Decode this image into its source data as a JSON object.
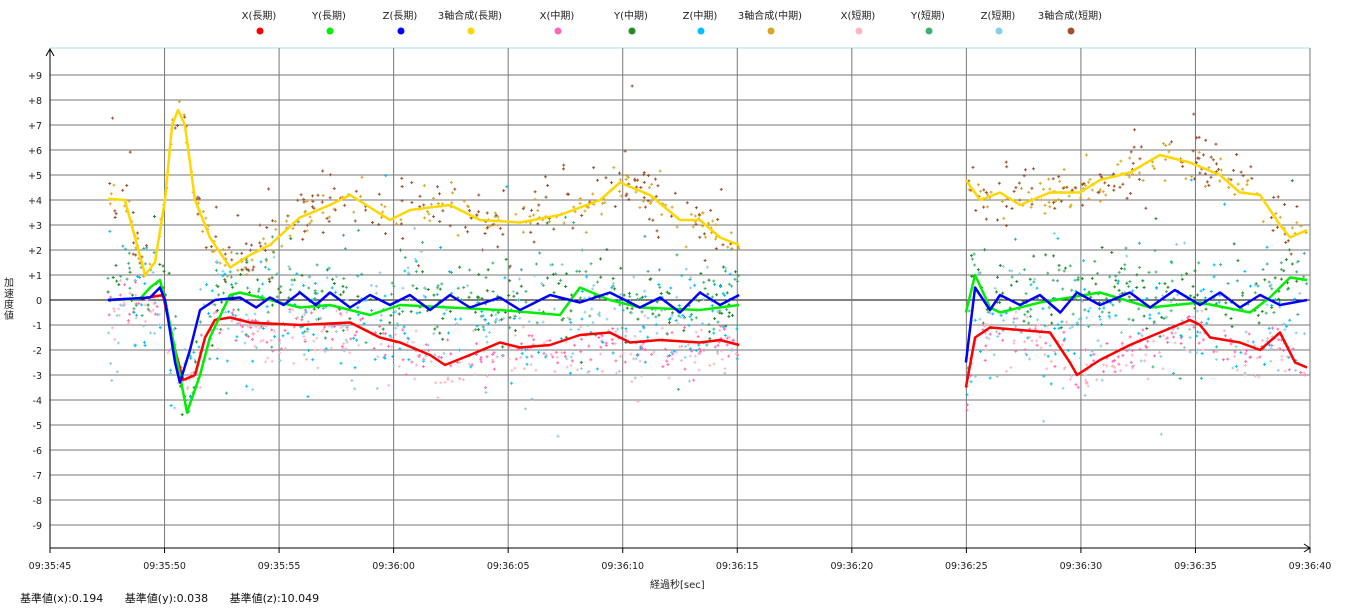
{
  "chart_data": {
    "type": "scatter",
    "title": "",
    "xlabel": "経過秒[sec]",
    "ylabel": "加速度値",
    "x_ticks": [
      "09:35:45",
      "09:35:50",
      "09:35:55",
      "09:36:00",
      "09:36:05",
      "09:36:10",
      "09:36:15",
      "09:36:20",
      "09:36:25",
      "09:36:30",
      "09:36:35",
      "09:36:40"
    ],
    "x_range_sec": [
      0,
      55
    ],
    "y_ticks": [
      "+9",
      "+8",
      "+7",
      "+6",
      "+5",
      "+4",
      "+3",
      "+2",
      "+1",
      "0",
      "-1",
      "-2",
      "-3",
      "-4",
      "-5",
      "-6",
      "-7",
      "-8",
      "-9"
    ],
    "y_tick_values": [
      9,
      8,
      7,
      6,
      5,
      4,
      3,
      2,
      1,
      0,
      -1,
      -2,
      -3,
      -4,
      -5,
      -6,
      -7,
      -8,
      -9
    ],
    "ylim": [
      -10,
      10
    ],
    "grid": true,
    "legend_position": "top",
    "series": [
      {
        "name": "X(長期)",
        "color": "#ff0000",
        "kind": "line",
        "segments": [
          [
            [
              2.53,
              0
            ],
            [
              3.93,
              0.05
            ],
            [
              4.93,
              0.2
            ],
            [
              5.46,
              -2
            ],
            [
              5.81,
              -3.2
            ],
            [
              6.33,
              -3
            ],
            [
              6.77,
              -1.5
            ],
            [
              7.2,
              -0.8
            ],
            [
              7.86,
              -0.7
            ],
            [
              8.73,
              -0.9
            ],
            [
              10.91,
              -1
            ],
            [
              13.1,
              -0.9
            ],
            [
              14.4,
              -1.5
            ],
            [
              15.28,
              -1.7
            ],
            [
              16.59,
              -2.2
            ],
            [
              17.24,
              -2.6
            ],
            [
              18.33,
              -2.2
            ],
            [
              19.64,
              -1.7
            ],
            [
              20.52,
              -1.9
            ],
            [
              21.83,
              -1.8
            ],
            [
              23.13,
              -1.4
            ],
            [
              24.44,
              -1.3
            ],
            [
              25.32,
              -1.7
            ],
            [
              26.63,
              -1.6
            ],
            [
              28.37,
              -1.7
            ],
            [
              29.25,
              -1.6
            ],
            [
              30.08,
              -1.8
            ]
          ],
          [
            [
              39.98,
              -3.5
            ],
            [
              40.38,
              -1.5
            ],
            [
              41.03,
              -1.1
            ],
            [
              42.34,
              -1.2
            ],
            [
              43.65,
              -1.3
            ],
            [
              44.52,
              -2.5
            ],
            [
              44.83,
              -3
            ],
            [
              45.83,
              -2.4
            ],
            [
              47.14,
              -1.8
            ],
            [
              48.45,
              -1.3
            ],
            [
              49.76,
              -0.8
            ],
            [
              50.2,
              -1
            ],
            [
              50.64,
              -1.5
            ],
            [
              51.94,
              -1.7
            ],
            [
              52.82,
              -2
            ],
            [
              53.69,
              -1.3
            ],
            [
              54.35,
              -2.5
            ],
            [
              54.87,
              -2.7
            ]
          ]
        ]
      },
      {
        "name": "Y(長期)",
        "color": "#00ee00",
        "kind": "line",
        "segments": [
          [
            [
              2.53,
              0
            ],
            [
              3.93,
              0.05
            ],
            [
              4.37,
              0.5
            ],
            [
              4.8,
              0.8
            ],
            [
              5.02,
              0
            ],
            [
              5.46,
              -2
            ],
            [
              5.98,
              -4.5
            ],
            [
              6.55,
              -3
            ],
            [
              6.98,
              -1.5
            ],
            [
              7.86,
              0.2
            ],
            [
              8.29,
              0.3
            ],
            [
              10.91,
              -0.3
            ],
            [
              12.22,
              -0.2
            ],
            [
              13.97,
              -0.6
            ],
            [
              15.28,
              -0.2
            ],
            [
              17.46,
              -0.3
            ],
            [
              19.64,
              -0.4
            ],
            [
              22.26,
              -0.6
            ],
            [
              23.13,
              0.5
            ],
            [
              24.44,
              0
            ],
            [
              25.75,
              -0.3
            ],
            [
              28.37,
              -0.4
            ],
            [
              30.08,
              -0.2
            ]
          ],
          [
            [
              39.98,
              -0.5
            ],
            [
              40.38,
              1
            ],
            [
              41.03,
              -0.3
            ],
            [
              41.47,
              -0.5
            ],
            [
              43.21,
              -0.1
            ],
            [
              45.83,
              0.3
            ],
            [
              48.02,
              -0.3
            ],
            [
              50.2,
              -0.1
            ],
            [
              52.38,
              -0.5
            ],
            [
              53.25,
              0.1
            ],
            [
              54.13,
              0.9
            ],
            [
              54.87,
              0.8
            ]
          ]
        ]
      },
      {
        "name": "Z(長期)",
        "color": "#0000ff",
        "kind": "line",
        "segments": [
          [
            [
              2.53,
              0
            ],
            [
              4.37,
              0.1
            ],
            [
              4.8,
              0.5
            ],
            [
              5.02,
              0
            ],
            [
              5.46,
              -2.5
            ],
            [
              5.67,
              -3.3
            ],
            [
              6.11,
              -2
            ],
            [
              6.55,
              -0.4
            ],
            [
              7.2,
              0
            ],
            [
              8.29,
              0.1
            ],
            [
              9.0,
              -0.3
            ],
            [
              9.6,
              0.1
            ],
            [
              10.2,
              -0.2
            ],
            [
              10.91,
              0.3
            ],
            [
              11.6,
              -0.2
            ],
            [
              12.22,
              0.3
            ],
            [
              13.1,
              -0.3
            ],
            [
              13.97,
              0.2
            ],
            [
              14.84,
              -0.2
            ],
            [
              15.71,
              0.2
            ],
            [
              16.59,
              -0.4
            ],
            [
              17.46,
              0.2
            ],
            [
              18.33,
              -0.3
            ],
            [
              19.64,
              0.1
            ],
            [
              20.52,
              -0.4
            ],
            [
              21.83,
              0.2
            ],
            [
              23.13,
              -0.1
            ],
            [
              24.44,
              0.3
            ],
            [
              25.75,
              -0.3
            ],
            [
              26.63,
              0.1
            ],
            [
              27.5,
              -0.5
            ],
            [
              28.37,
              0.3
            ],
            [
              29.25,
              -0.2
            ],
            [
              30.08,
              0.2
            ]
          ],
          [
            [
              39.98,
              -2.5
            ],
            [
              40.38,
              0.5
            ],
            [
              41.03,
              -0.4
            ],
            [
              41.47,
              0.2
            ],
            [
              42.34,
              -0.2
            ],
            [
              43.21,
              0.2
            ],
            [
              44.1,
              -0.5
            ],
            [
              44.83,
              0.3
            ],
            [
              45.83,
              -0.2
            ],
            [
              47.14,
              0.3
            ],
            [
              48.02,
              -0.3
            ],
            [
              49.1,
              0.4
            ],
            [
              50.2,
              -0.2
            ],
            [
              51.07,
              0.3
            ],
            [
              51.94,
              -0.3
            ],
            [
              52.82,
              0.2
            ],
            [
              53.69,
              -0.2
            ],
            [
              54.87,
              0
            ]
          ]
        ]
      },
      {
        "name": "3軸合成(長期)",
        "color": "#ffd700",
        "kind": "line",
        "segments": [
          [
            [
              2.53,
              4.05
            ],
            [
              3.27,
              4
            ],
            [
              3.71,
              2.5
            ],
            [
              4.15,
              1
            ],
            [
              4.58,
              1.5
            ],
            [
              5.02,
              4
            ],
            [
              5.33,
              7
            ],
            [
              5.59,
              7.6
            ],
            [
              5.89,
              7
            ],
            [
              6.33,
              4
            ],
            [
              6.98,
              2.5
            ],
            [
              7.86,
              1.3
            ],
            [
              8.73,
              1.8
            ],
            [
              9.6,
              2.2
            ],
            [
              10.91,
              3.3
            ],
            [
              12.22,
              3.8
            ],
            [
              13.1,
              4.2
            ],
            [
              13.97,
              3.7
            ],
            [
              14.84,
              3.2
            ],
            [
              15.71,
              3.6
            ],
            [
              17.46,
              3.8
            ],
            [
              18.77,
              3.2
            ],
            [
              20.52,
              3.1
            ],
            [
              22.26,
              3.4
            ],
            [
              24.01,
              4
            ],
            [
              24.88,
              4.7
            ],
            [
              26.19,
              4.2
            ],
            [
              27.5,
              3.2
            ],
            [
              28.37,
              3.2
            ],
            [
              29.25,
              2.5
            ],
            [
              30.08,
              2.2
            ]
          ],
          [
            [
              39.98,
              4.8
            ],
            [
              40.6,
              4
            ],
            [
              41.47,
              4.3
            ],
            [
              42.34,
              3.8
            ],
            [
              43.65,
              4.3
            ],
            [
              44.96,
              4.3
            ],
            [
              45.83,
              4.8
            ],
            [
              47.14,
              5.1
            ],
            [
              48.45,
              5.8
            ],
            [
              49.76,
              5.5
            ],
            [
              51.07,
              5
            ],
            [
              51.94,
              4.3
            ],
            [
              52.82,
              4.2
            ],
            [
              53.69,
              3
            ],
            [
              54.13,
              2.5
            ],
            [
              54.87,
              2.8
            ]
          ]
        ]
      },
      {
        "name": "X(中期)",
        "color": "#ff69b4",
        "kind": "scatter",
        "base": 0,
        "offset": -0.2,
        "spread": 1.2
      },
      {
        "name": "Y(中期)",
        "color": "#228b22",
        "kind": "scatter",
        "base": 1,
        "offset": 0.3,
        "spread": 2.2
      },
      {
        "name": "Z(中期)",
        "color": "#00bfff",
        "kind": "scatter",
        "base": 2,
        "offset": -0.6,
        "spread": 3.2
      },
      {
        "name": "3軸合成(中期)",
        "color": "#daa520",
        "kind": "scatter",
        "base": 3,
        "offset": 0,
        "spread": 1.0
      },
      {
        "name": "X(短期)",
        "color": "#ffb6c1",
        "kind": "scatter",
        "base": 0,
        "offset": -0.4,
        "spread": 1.6
      },
      {
        "name": "Y(短期)",
        "color": "#3cb371",
        "kind": "scatter",
        "base": 1,
        "offset": 0.4,
        "spread": 2.6
      },
      {
        "name": "Z(短期)",
        "color": "#87ceeb",
        "kind": "scatter",
        "base": 2,
        "offset": -0.8,
        "spread": 3.8
      },
      {
        "name": "3軸合成(短期)",
        "color": "#a0522d",
        "kind": "scatter",
        "base": 3,
        "offset": 0.2,
        "spread": 2.0
      }
    ]
  },
  "footer": {
    "base_x": "基準値(x):0.194",
    "base_y": "基準値(y):0.038",
    "base_z": "基準値(z):10.049"
  }
}
